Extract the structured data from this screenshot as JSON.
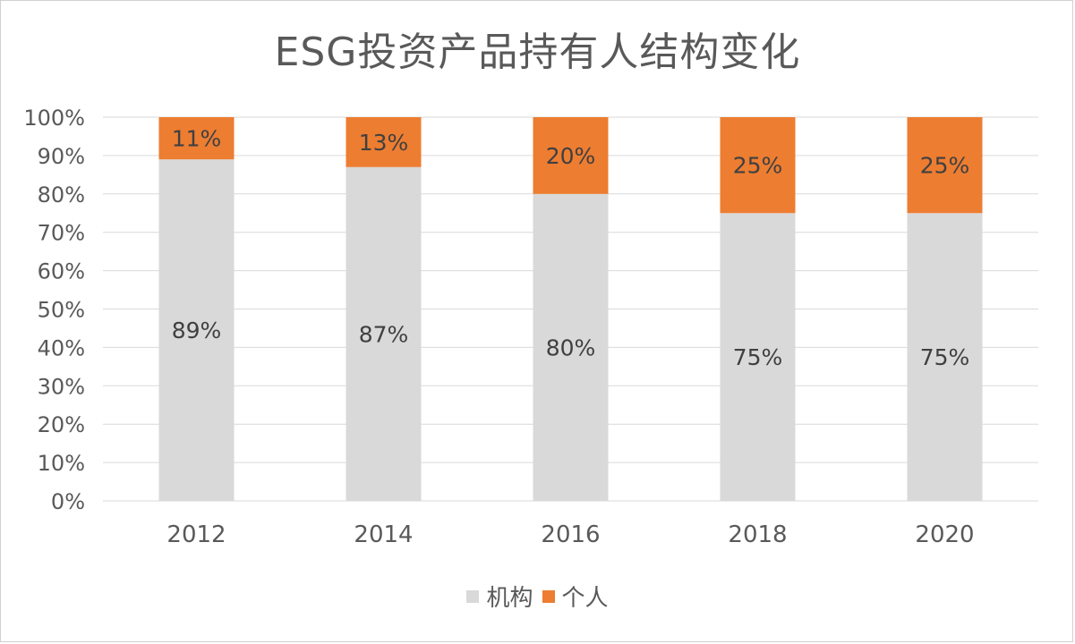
{
  "chart_data": {
    "type": "bar",
    "stacked": true,
    "title": "ESG投资产品持有人结构变化",
    "categories": [
      "2012",
      "2014",
      "2016",
      "2018",
      "2020"
    ],
    "series": [
      {
        "name": "机构",
        "values": [
          89,
          87,
          80,
          75,
          75
        ],
        "color": "#d9d9d9",
        "labels": [
          "89%",
          "87%",
          "80%",
          "75%",
          "75%"
        ]
      },
      {
        "name": "个人",
        "values": [
          11,
          13,
          20,
          25,
          25
        ],
        "color": "#ed7d31",
        "labels": [
          "11%",
          "13%",
          "20%",
          "25%",
          "25%"
        ]
      }
    ],
    "ylim": [
      0,
      100
    ],
    "y_ticks": [
      "0%",
      "10%",
      "20%",
      "30%",
      "40%",
      "50%",
      "60%",
      "70%",
      "80%",
      "90%",
      "100%"
    ],
    "grid": true,
    "legend": "bottom"
  }
}
